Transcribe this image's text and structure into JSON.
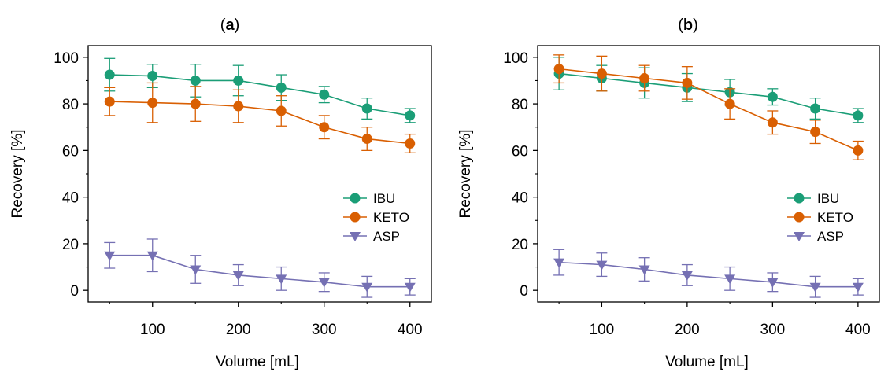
{
  "chart_data": [
    {
      "type": "line",
      "panel_label_open": "(",
      "panel_label_letter": "a",
      "panel_label_close": ")",
      "xlabel": "Volume  [mL]",
      "ylabel": "Recovery  [%]",
      "xlim": [
        25,
        425
      ],
      "ylim": [
        -5,
        105
      ],
      "xticks": [
        100,
        200,
        300,
        400
      ],
      "yticks": [
        0,
        20,
        40,
        60,
        80,
        100
      ],
      "grid": false,
      "legend_position": "right-middle",
      "x": [
        50,
        100,
        150,
        200,
        250,
        300,
        350,
        400
      ],
      "series": [
        {
          "name": "IBU",
          "color": "#1b9e77",
          "marker": "circle",
          "values": [
            92.5,
            92,
            90,
            90,
            87,
            84,
            78,
            75
          ],
          "errors": [
            7,
            5,
            7,
            6.5,
            5.5,
            3.5,
            4.5,
            3
          ]
        },
        {
          "name": "KETO",
          "color": "#d95f02",
          "marker": "circle",
          "values": [
            81,
            80.5,
            80,
            79,
            77,
            70,
            65,
            63
          ],
          "errors": [
            6,
            8.5,
            7.5,
            7,
            6.5,
            5,
            5,
            4
          ]
        },
        {
          "name": "ASP",
          "color": "#7570b3",
          "marker": "triangle-down",
          "values": [
            15,
            15,
            9,
            6.5,
            5,
            3.5,
            1.5,
            1.5
          ],
          "errors": [
            5.5,
            7,
            6,
            4.5,
            5,
            4,
            4.5,
            3.5
          ]
        }
      ]
    },
    {
      "type": "line",
      "panel_label_open": "(",
      "panel_label_letter": "b",
      "panel_label_close": ")",
      "xlabel": "Volume  [mL]",
      "ylabel": "Recovery  [%]",
      "xlim": [
        25,
        425
      ],
      "ylim": [
        -5,
        105
      ],
      "xticks": [
        100,
        200,
        300,
        400
      ],
      "yticks": [
        0,
        20,
        40,
        60,
        80,
        100
      ],
      "grid": false,
      "legend_position": "right-middle",
      "x": [
        50,
        100,
        150,
        200,
        250,
        300,
        350,
        400
      ],
      "series": [
        {
          "name": "IBU",
          "color": "#1b9e77",
          "marker": "circle",
          "values": [
            93,
            91,
            89,
            87,
            85,
            83,
            78,
            75
          ],
          "errors": [
            7,
            5.5,
            6.5,
            6,
            5.5,
            3.5,
            4.5,
            3
          ]
        },
        {
          "name": "KETO",
          "color": "#d95f02",
          "marker": "circle",
          "values": [
            95,
            93,
            91,
            89,
            80,
            72,
            68,
            60
          ],
          "errors": [
            6,
            7.5,
            5.5,
            7,
            6.5,
            5,
            5,
            4
          ]
        },
        {
          "name": "ASP",
          "color": "#7570b3",
          "marker": "triangle-down",
          "values": [
            12,
            11,
            9,
            6.5,
            5,
            3.5,
            1.5,
            1.5
          ],
          "errors": [
            5.5,
            5,
            5,
            4.5,
            5,
            4,
            4.5,
            3.5
          ]
        }
      ]
    }
  ]
}
